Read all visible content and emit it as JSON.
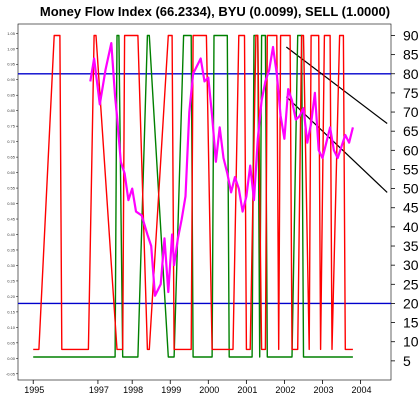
{
  "chart_data": {
    "type": "line",
    "title": "Money Flow Index (66.2334), BYU (0.0099), SELL (1.0000)",
    "x_ticks": [
      "1995",
      "1997",
      "1998",
      "1999",
      "2000",
      "2001",
      "2002",
      "2003",
      "2004"
    ],
    "x_tick_positions": [
      1995.4,
      1997.1,
      1998.0,
      1999.0,
      2000.0,
      2001.0,
      2002.0,
      2003.0,
      2004.0
    ],
    "xlim": [
      1995.0,
      2004.8
    ],
    "right_axis": {
      "ticks": [
        5,
        10,
        15,
        20,
        25,
        30,
        35,
        40,
        45,
        50,
        55,
        60,
        65,
        70,
        75,
        80,
        85,
        90
      ],
      "ylim": [
        0,
        93
      ]
    },
    "left_axis": {
      "ticks": [
        "1.05",
        "1.00",
        "0.95",
        "0.90",
        "0.85",
        "0.80",
        "0.75",
        "0.70",
        "0.65",
        "0.60",
        "0.55",
        "0.50",
        "0.45",
        "0.40",
        "0.35",
        "0.30",
        "0.25",
        "0.20",
        "0.15",
        "0.10",
        "0.05",
        "0.00",
        "-0.05"
      ],
      "ylim": [
        -0.07,
        1.08
      ]
    },
    "reference_lines": [
      {
        "value": 80,
        "color": "#0000cc"
      },
      {
        "value": 20,
        "color": "#0000cc"
      }
    ],
    "trend_lines": [
      {
        "x": [
          2002.05,
          2004.7
        ],
        "y": [
          87,
          67
        ],
        "color": "#000000"
      },
      {
        "x": [
          2002.05,
          2004.7
        ],
        "y": [
          74,
          49
        ],
        "color": "#000000"
      }
    ],
    "series": [
      {
        "name": "Money Flow Index",
        "color": "#ff00ff",
        "x": [
          1996.9,
          1997.0,
          1997.15,
          1997.3,
          1997.45,
          1997.55,
          1997.6,
          1997.7,
          1997.8,
          1997.9,
          1998.0,
          1998.1,
          1998.25,
          1998.4,
          1998.5,
          1998.6,
          1998.75,
          1998.85,
          1998.95,
          1999.05,
          1999.1,
          1999.2,
          1999.3,
          1999.4,
          1999.5,
          1999.6,
          1999.7,
          1999.8,
          1999.9,
          2000.0,
          2000.1,
          2000.2,
          2000.3,
          2000.4,
          2000.5,
          2000.6,
          2000.7,
          2000.8,
          2000.9,
          2001.0,
          2001.1,
          2001.2,
          2001.3,
          2001.4,
          2001.5,
          2001.6,
          2001.7,
          2001.8,
          2001.9,
          2002.0,
          2002.1,
          2002.2,
          2002.3,
          2002.4,
          2002.5,
          2002.6,
          2002.7,
          2002.8,
          2002.9,
          2003.0,
          2003.1,
          2003.2,
          2003.3,
          2003.4,
          2003.5,
          2003.6,
          2003.7,
          2003.8
        ],
        "y": [
          78,
          84,
          72,
          81,
          88,
          74,
          69,
          57,
          54,
          47,
          50,
          44,
          43,
          38,
          35,
          22,
          25,
          37,
          23,
          38,
          30,
          37,
          42,
          48,
          70,
          80,
          82,
          84,
          78,
          79,
          69,
          57,
          66,
          58,
          54,
          49,
          53,
          50,
          44,
          48,
          56,
          47,
          63,
          73,
          78,
          81,
          87,
          80,
          69,
          63,
          76,
          73,
          68,
          69,
          71,
          62,
          67,
          75,
          60,
          58,
          62,
          66,
          60,
          58,
          61,
          64,
          62,
          66
        ]
      },
      {
        "name": "SELL",
        "color": "#ff0000",
        "x": [
          1995.4,
          1995.5,
          1995.55,
          1995.95,
          1996.1,
          1996.15,
          1996.85,
          1997.0,
          1997.05,
          1997.6,
          1997.75,
          1997.8,
          1998.15,
          1998.4,
          1998.45,
          1998.95,
          1999.05,
          1999.1,
          1999.4,
          1999.55,
          1999.6,
          1999.95,
          2000.1,
          2000.15,
          2000.5,
          2000.6,
          2000.65,
          2000.8,
          2000.95,
          2001.0,
          2001.1,
          2001.25,
          2001.3,
          2001.4,
          2001.5,
          2001.55,
          2001.8,
          2001.85,
          2001.9,
          2001.95,
          2002.15,
          2002.2,
          2002.35,
          2002.45,
          2002.5,
          2002.65,
          2002.7,
          2002.9,
          2002.95,
          2003.05,
          2003.2,
          2003.25,
          2003.45,
          2003.55,
          2003.6,
          2003.8
        ],
        "y": [
          8,
          8,
          8,
          90,
          90,
          8,
          8,
          90,
          90,
          8,
          8,
          90,
          90,
          8,
          8,
          90,
          90,
          8,
          8,
          8,
          90,
          90,
          8,
          8,
          8,
          8,
          8,
          90,
          90,
          8,
          8,
          90,
          90,
          8,
          8,
          90,
          90,
          8,
          90,
          90,
          90,
          8,
          8,
          90,
          90,
          8,
          90,
          90,
          8,
          90,
          90,
          8,
          90,
          90,
          8,
          8
        ]
      },
      {
        "name": "BYU",
        "color": "#008000",
        "x": [
          1995.4,
          1995.95,
          1996.1,
          1996.15,
          1996.85,
          1997.0,
          1997.05,
          1997.55,
          1997.6,
          1997.65,
          1997.75,
          1997.8,
          1998.15,
          1998.4,
          1998.45,
          1998.95,
          1999.0,
          1999.1,
          1999.35,
          1999.55,
          1999.6,
          1999.95,
          2000.0,
          2000.1,
          2000.15,
          2000.5,
          2000.55,
          2000.6,
          2000.65,
          2000.8,
          2000.95,
          2001.05,
          2001.15,
          2001.2,
          2001.3,
          2001.35,
          2001.4,
          2001.5,
          2001.55,
          2001.85,
          2001.9,
          2002.0,
          2002.15,
          2002.2,
          2002.35,
          2002.45,
          2002.5,
          2002.7,
          2002.75,
          2003.0,
          2003.05,
          2003.55,
          2003.6,
          2003.8
        ],
        "y": [
          6,
          6,
          6,
          6,
          6,
          6,
          6,
          6,
          90,
          90,
          6,
          6,
          6,
          90,
          90,
          6,
          6,
          6,
          90,
          90,
          6,
          6,
          6,
          6,
          90,
          90,
          6,
          6,
          6,
          6,
          6,
          6,
          6,
          90,
          90,
          6,
          90,
          90,
          6,
          6,
          6,
          6,
          6,
          6,
          90,
          90,
          6,
          6,
          6,
          6,
          6,
          6,
          6,
          6
        ]
      }
    ]
  }
}
